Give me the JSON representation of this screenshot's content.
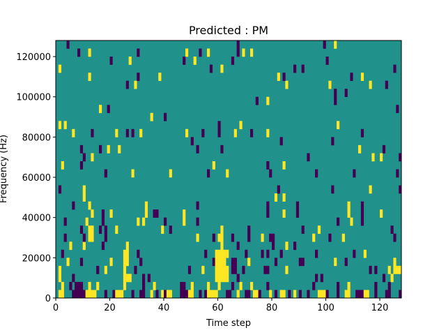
{
  "chart_data": {
    "type": "heatmap",
    "title": "Predicted : PM",
    "xlabel": "Time step",
    "ylabel": "Frequency (Hz)",
    "xlim": [
      0,
      128
    ],
    "ylim": [
      0,
      128000
    ],
    "n_cols": 128,
    "n_rows": 32,
    "row_height_hz": 4000,
    "xticks": [
      0,
      20,
      40,
      60,
      80,
      100,
      120
    ],
    "xtick_labels": [
      "0",
      "20",
      "40",
      "60",
      "80",
      "100",
      "120"
    ],
    "yticks": [
      0,
      20000,
      40000,
      60000,
      80000,
      100000,
      120000
    ],
    "ytick_labels": [
      "0",
      "20000",
      "40000",
      "60000",
      "80000",
      "100000",
      "120000"
    ],
    "grid": false,
    "colors": {
      "background_value": "#21918c",
      "high_value": "#fde725",
      "low_value": "#440154"
    },
    "cells": [
      [
        0,
        1,
        2,
        1
      ],
      [
        0,
        6,
        10,
        -1
      ],
      [
        0,
        11,
        14,
        1
      ],
      [
        0,
        18,
        18,
        -1
      ],
      [
        0,
        21,
        21,
        -1
      ],
      [
        0,
        22,
        24,
        1
      ],
      [
        0,
        28,
        28,
        -1
      ],
      [
        0,
        31,
        32,
        -1
      ],
      [
        0,
        35,
        35,
        1
      ],
      [
        0,
        37,
        37,
        -1
      ],
      [
        0,
        39,
        39,
        1
      ],
      [
        0,
        40,
        40,
        -1
      ],
      [
        0,
        41,
        42,
        1
      ],
      [
        0,
        46,
        48,
        -1
      ],
      [
        0,
        49,
        50,
        1
      ],
      [
        0,
        53,
        53,
        -1
      ],
      [
        0,
        55,
        55,
        -1
      ],
      [
        0,
        56,
        59,
        1
      ],
      [
        0,
        63,
        64,
        -1
      ],
      [
        0,
        67,
        67,
        1
      ],
      [
        0,
        70,
        71,
        -1
      ],
      [
        0,
        73,
        74,
        1
      ],
      [
        0,
        75,
        75,
        -1
      ],
      [
        0,
        79,
        79,
        1
      ],
      [
        0,
        81,
        81,
        -1
      ],
      [
        0,
        83,
        84,
        1
      ],
      [
        0,
        86,
        86,
        -1
      ],
      [
        0,
        88,
        88,
        1
      ],
      [
        0,
        90,
        90,
        -1
      ],
      [
        0,
        93,
        93,
        -1
      ],
      [
        0,
        97,
        99,
        1
      ],
      [
        0,
        100,
        100,
        -1
      ],
      [
        0,
        104,
        104,
        -1
      ],
      [
        0,
        107,
        108,
        1
      ],
      [
        0,
        111,
        113,
        -1
      ],
      [
        0,
        114,
        115,
        1
      ],
      [
        0,
        118,
        118,
        -1
      ],
      [
        0,
        122,
        123,
        -1
      ],
      [
        0,
        127,
        127,
        -1
      ],
      [
        1,
        2,
        2,
        1
      ],
      [
        1,
        5,
        5,
        -1
      ],
      [
        1,
        7,
        9,
        -1
      ],
      [
        1,
        12,
        12,
        1
      ],
      [
        1,
        15,
        15,
        1
      ],
      [
        1,
        25,
        25,
        1
      ],
      [
        1,
        32,
        32,
        -1
      ],
      [
        1,
        36,
        36,
        1
      ],
      [
        1,
        46,
        47,
        -1
      ],
      [
        1,
        50,
        50,
        1
      ],
      [
        1,
        56,
        56,
        1
      ],
      [
        1,
        60,
        60,
        1
      ],
      [
        1,
        65,
        65,
        -1
      ],
      [
        1,
        68,
        68,
        1
      ],
      [
        1,
        72,
        72,
        1
      ],
      [
        1,
        78,
        78,
        -1
      ],
      [
        1,
        95,
        95,
        -1
      ],
      [
        1,
        104,
        104,
        -1
      ],
      [
        1,
        108,
        108,
        1
      ],
      [
        1,
        118,
        118,
        -1
      ],
      [
        1,
        123,
        123,
        -1
      ],
      [
        2,
        1,
        1,
        1
      ],
      [
        2,
        6,
        6,
        -1
      ],
      [
        2,
        25,
        27,
        1
      ],
      [
        2,
        32,
        32,
        -1
      ],
      [
        2,
        34,
        34,
        -1
      ],
      [
        2,
        59,
        63,
        1
      ],
      [
        2,
        67,
        67,
        -1
      ],
      [
        2,
        96,
        96,
        -1
      ],
      [
        2,
        98,
        98,
        -1
      ],
      [
        2,
        121,
        121,
        -1
      ],
      [
        2,
        124,
        124,
        1
      ],
      [
        3,
        1,
        1,
        1
      ],
      [
        3,
        15,
        15,
        -1
      ],
      [
        3,
        18,
        18,
        1
      ],
      [
        3,
        25,
        25,
        1
      ],
      [
        3,
        29,
        29,
        -1
      ],
      [
        3,
        49,
        49,
        -1
      ],
      [
        3,
        54,
        54,
        1
      ],
      [
        3,
        59,
        63,
        1
      ],
      [
        3,
        65,
        66,
        -1
      ],
      [
        3,
        69,
        69,
        -1
      ],
      [
        3,
        77,
        78,
        -1
      ],
      [
        3,
        85,
        85,
        1
      ],
      [
        3,
        116,
        116,
        -1
      ],
      [
        3,
        118,
        118,
        -1
      ],
      [
        3,
        123,
        123,
        1
      ],
      [
        3,
        125,
        127,
        1
      ],
      [
        4,
        4,
        4,
        1
      ],
      [
        4,
        9,
        9,
        -1
      ],
      [
        4,
        20,
        20,
        1
      ],
      [
        4,
        25,
        26,
        1
      ],
      [
        4,
        31,
        31,
        -1
      ],
      [
        4,
        58,
        58,
        -1
      ],
      [
        4,
        59,
        62,
        1
      ],
      [
        4,
        65,
        66,
        -1
      ],
      [
        4,
        71,
        71,
        1
      ],
      [
        4,
        81,
        81,
        -1
      ],
      [
        4,
        90,
        91,
        -1
      ],
      [
        4,
        103,
        103,
        1
      ],
      [
        4,
        107,
        107,
        -1
      ],
      [
        4,
        125,
        125,
        1
      ],
      [
        5,
        2,
        2,
        -1
      ],
      [
        5,
        25,
        26,
        1
      ],
      [
        5,
        30,
        30,
        -1
      ],
      [
        5,
        55,
        55,
        -1
      ],
      [
        5,
        59,
        63,
        1
      ],
      [
        5,
        70,
        70,
        -1
      ],
      [
        5,
        76,
        76,
        -1
      ],
      [
        5,
        78,
        78,
        -1
      ],
      [
        5,
        83,
        83,
        -1
      ],
      [
        5,
        96,
        96,
        -1
      ],
      [
        5,
        110,
        110,
        -1
      ],
      [
        5,
        114,
        114,
        1
      ],
      [
        6,
        5,
        5,
        1
      ],
      [
        6,
        10,
        10,
        1
      ],
      [
        6,
        17,
        17,
        -1
      ],
      [
        6,
        26,
        26,
        1
      ],
      [
        6,
        61,
        61,
        1
      ],
      [
        6,
        67,
        67,
        -1
      ],
      [
        6,
        80,
        80,
        -1
      ],
      [
        6,
        85,
        85,
        1
      ],
      [
        6,
        88,
        88,
        -1
      ],
      [
        7,
        3,
        3,
        -1
      ],
      [
        7,
        10,
        10,
        -1
      ],
      [
        7,
        12,
        13,
        1
      ],
      [
        7,
        18,
        18,
        -1
      ],
      [
        7,
        52,
        52,
        1
      ],
      [
        7,
        58,
        58,
        -1
      ],
      [
        7,
        60,
        61,
        1
      ],
      [
        7,
        65,
        65,
        -1
      ],
      [
        7,
        71,
        71,
        -1
      ],
      [
        7,
        76,
        76,
        1
      ],
      [
        7,
        79,
        80,
        -1
      ],
      [
        7,
        95,
        95,
        1
      ],
      [
        7,
        101,
        101,
        -1
      ],
      [
        7,
        106,
        106,
        1
      ],
      [
        7,
        125,
        125,
        -1
      ],
      [
        8,
        9,
        9,
        -1
      ],
      [
        8,
        12,
        13,
        1
      ],
      [
        8,
        16,
        16,
        -1
      ],
      [
        8,
        18,
        18,
        -1
      ],
      [
        8,
        22,
        22,
        1
      ],
      [
        8,
        39,
        39,
        1
      ],
      [
        8,
        42,
        42,
        -1
      ],
      [
        8,
        61,
        61,
        1
      ],
      [
        8,
        71,
        71,
        -1
      ],
      [
        8,
        91,
        91,
        -1
      ],
      [
        8,
        97,
        97,
        1
      ],
      [
        8,
        124,
        124,
        -1
      ],
      [
        9,
        3,
        3,
        -1
      ],
      [
        9,
        11,
        11,
        1
      ],
      [
        9,
        17,
        17,
        -1
      ],
      [
        9,
        30,
        30,
        1
      ],
      [
        9,
        32,
        32,
        1
      ],
      [
        9,
        40,
        40,
        -1
      ],
      [
        9,
        47,
        47,
        1
      ],
      [
        9,
        52,
        52,
        -1
      ],
      [
        9,
        104,
        104,
        -1
      ],
      [
        9,
        109,
        109,
        1
      ],
      [
        9,
        113,
        113,
        -1
      ],
      [
        10,
        13,
        13,
        1
      ],
      [
        10,
        17,
        17,
        -1
      ],
      [
        10,
        20,
        20,
        1
      ],
      [
        10,
        33,
        33,
        1
      ],
      [
        10,
        36,
        37,
        -1
      ],
      [
        10,
        47,
        47,
        1
      ],
      [
        10,
        78,
        78,
        -1
      ],
      [
        10,
        84,
        84,
        1
      ],
      [
        10,
        89,
        89,
        -1
      ],
      [
        10,
        108,
        108,
        1
      ],
      [
        10,
        113,
        113,
        -1
      ],
      [
        10,
        120,
        120,
        1
      ],
      [
        11,
        6,
        6,
        -1
      ],
      [
        11,
        12,
        12,
        1
      ],
      [
        11,
        33,
        33,
        1
      ],
      [
        11,
        52,
        52,
        -1
      ],
      [
        11,
        78,
        78,
        -1
      ],
      [
        11,
        89,
        89,
        -1
      ],
      [
        11,
        108,
        108,
        1
      ],
      [
        11,
        113,
        113,
        -1
      ],
      [
        12,
        10,
        10,
        1
      ],
      [
        12,
        81,
        81,
        1
      ],
      [
        12,
        84,
        84,
        1
      ],
      [
        13,
        1,
        1,
        -1
      ],
      [
        13,
        10,
        10,
        1
      ],
      [
        13,
        82,
        82,
        -1
      ],
      [
        13,
        102,
        102,
        -1
      ],
      [
        13,
        116,
        116,
        1
      ],
      [
        13,
        127,
        127,
        -1
      ],
      [
        15,
        18,
        18,
        -1
      ],
      [
        15,
        28,
        28,
        1
      ],
      [
        15,
        42,
        42,
        1
      ],
      [
        15,
        56,
        56,
        -1
      ],
      [
        15,
        63,
        63,
        1
      ],
      [
        15,
        79,
        79,
        -1
      ],
      [
        15,
        96,
        96,
        -1
      ],
      [
        15,
        110,
        110,
        -1
      ],
      [
        15,
        126,
        126,
        -1
      ],
      [
        16,
        2,
        2,
        1
      ],
      [
        16,
        9,
        9,
        -1
      ],
      [
        16,
        58,
        58,
        1
      ],
      [
        16,
        78,
        78,
        -1
      ],
      [
        16,
        84,
        84,
        1
      ],
      [
        17,
        10,
        10,
        -1
      ],
      [
        17,
        13,
        13,
        1
      ],
      [
        17,
        93,
        93,
        -1
      ],
      [
        17,
        117,
        117,
        1
      ],
      [
        17,
        120,
        120,
        1
      ],
      [
        17,
        127,
        127,
        -1
      ],
      [
        18,
        9,
        9,
        -1
      ],
      [
        18,
        16,
        16,
        -1
      ],
      [
        18,
        19,
        19,
        1
      ],
      [
        18,
        23,
        23,
        1
      ],
      [
        18,
        52,
        52,
        -1
      ],
      [
        18,
        61,
        61,
        -1
      ],
      [
        18,
        112,
        112,
        1
      ],
      [
        18,
        121,
        121,
        -1
      ],
      [
        19,
        50,
        50,
        -1
      ],
      [
        19,
        83,
        83,
        -1
      ],
      [
        19,
        102,
        102,
        -1
      ],
      [
        20,
        6,
        6,
        1
      ],
      [
        20,
        13,
        13,
        -1
      ],
      [
        20,
        22,
        22,
        1
      ],
      [
        20,
        26,
        26,
        -1
      ],
      [
        20,
        28,
        28,
        -1
      ],
      [
        20,
        31,
        31,
        1
      ],
      [
        20,
        48,
        48,
        1
      ],
      [
        20,
        54,
        54,
        -1
      ],
      [
        20,
        60,
        60,
        -1
      ],
      [
        20,
        66,
        66,
        1
      ],
      [
        20,
        72,
        72,
        -1
      ],
      [
        20,
        78,
        78,
        1
      ],
      [
        20,
        113,
        113,
        -1
      ],
      [
        21,
        1,
        1,
        1
      ],
      [
        21,
        3,
        3,
        1
      ],
      [
        21,
        60,
        60,
        -1
      ],
      [
        21,
        68,
        68,
        1
      ],
      [
        21,
        104,
        104,
        1
      ],
      [
        22,
        35,
        35,
        1
      ],
      [
        22,
        40,
        40,
        -1
      ],
      [
        23,
        16,
        16,
        1
      ],
      [
        23,
        19,
        19,
        -1
      ],
      [
        23,
        126,
        126,
        -1
      ],
      [
        24,
        74,
        74,
        -1
      ],
      [
        24,
        78,
        78,
        1
      ],
      [
        24,
        103,
        103,
        -1
      ],
      [
        25,
        103,
        103,
        -1
      ],
      [
        25,
        107,
        107,
        -1
      ],
      [
        26,
        26,
        26,
        -1
      ],
      [
        26,
        29,
        29,
        1
      ],
      [
        26,
        85,
        85,
        1
      ],
      [
        26,
        101,
        101,
        1
      ],
      [
        26,
        116,
        116,
        1
      ],
      [
        26,
        122,
        122,
        -1
      ],
      [
        27,
        12,
        12,
        1
      ],
      [
        27,
        30,
        30,
        -1
      ],
      [
        27,
        38,
        38,
        1
      ],
      [
        27,
        82,
        82,
        1
      ],
      [
        27,
        84,
        84,
        -1
      ],
      [
        27,
        109,
        109,
        -1
      ],
      [
        27,
        113,
        113,
        1
      ],
      [
        28,
        1,
        1,
        1
      ],
      [
        28,
        57,
        57,
        -1
      ],
      [
        28,
        61,
        61,
        1
      ],
      [
        28,
        88,
        88,
        -1
      ],
      [
        28,
        91,
        91,
        -1
      ],
      [
        28,
        125,
        125,
        -1
      ],
      [
        29,
        20,
        20,
        -1
      ],
      [
        29,
        27,
        27,
        1
      ],
      [
        29,
        47,
        47,
        -1
      ],
      [
        29,
        51,
        51,
        1
      ],
      [
        29,
        65,
        65,
        -1
      ],
      [
        29,
        100,
        100,
        -1
      ],
      [
        30,
        8,
        8,
        -1
      ],
      [
        30,
        12,
        12,
        1
      ],
      [
        30,
        30,
        30,
        -1
      ],
      [
        30,
        48,
        48,
        1
      ],
      [
        30,
        53,
        53,
        -1
      ],
      [
        30,
        56,
        56,
        1
      ],
      [
        30,
        67,
        67,
        -1
      ],
      [
        30,
        69,
        69,
        1
      ],
      [
        30,
        72,
        72,
        1
      ],
      [
        31,
        4,
        4,
        -1
      ],
      [
        31,
        67,
        67,
        -1
      ],
      [
        31,
        99,
        99,
        -1
      ],
      [
        31,
        103,
        103,
        1
      ]
    ]
  }
}
